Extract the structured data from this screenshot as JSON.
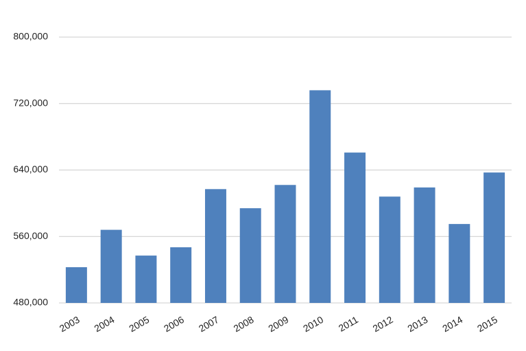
{
  "chart_data": {
    "type": "bar",
    "categories": [
      "2003",
      "2004",
      "2005",
      "2006",
      "2007",
      "2008",
      "2009",
      "2010",
      "2011",
      "2012",
      "2013",
      "2014",
      "2015"
    ],
    "values": [
      523000,
      568000,
      537000,
      547000,
      617000,
      594000,
      622000,
      736000,
      661000,
      608000,
      619000,
      575000,
      637000
    ],
    "color": "#4f81bd",
    "ylim": [
      480000,
      800000
    ],
    "yticks": [
      {
        "value": 480000,
        "label": "480,000"
      },
      {
        "value": 560000,
        "label": "560,000"
      },
      {
        "value": 640000,
        "label": "640,000"
      },
      {
        "value": 720000,
        "label": "720,000"
      },
      {
        "value": 800000,
        "label": "800,000"
      }
    ],
    "grid": true
  }
}
